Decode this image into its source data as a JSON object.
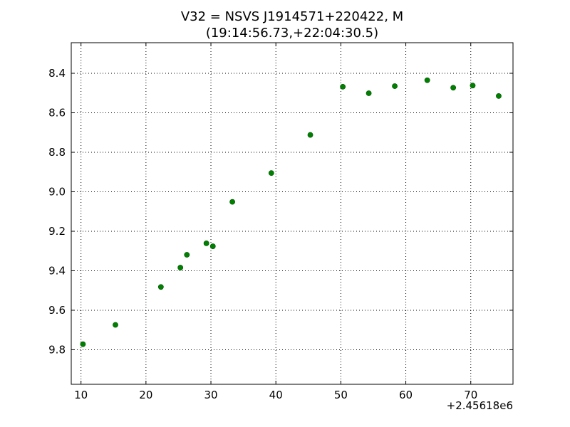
{
  "chart_data": {
    "type": "scatter",
    "title": "V32 = NSVS J1914571+220422, M",
    "subtitle": "(19:14:56.73,+22:04:30.5)",
    "xlabel": "",
    "ylabel": "",
    "x_offset_label": "+2.45618e6",
    "xlim": [
      8.5,
      76.5
    ],
    "ylim": [
      9.975,
      8.245
    ],
    "y_inverted": true,
    "x_ticks": [
      10,
      20,
      30,
      40,
      50,
      60,
      70
    ],
    "y_ticks": [
      8.4,
      8.6,
      8.8,
      9.0,
      9.2,
      9.4,
      9.6,
      9.8
    ],
    "y_tick_labels": [
      "8.4",
      "8.6",
      "8.8",
      "9.0",
      "9.2",
      "9.4",
      "9.6",
      "9.8"
    ],
    "grid": true,
    "marker_color": "#008000",
    "series": [
      {
        "x": [
          10.3,
          15.3,
          22.3,
          25.3,
          26.3,
          29.3,
          30.3,
          33.3,
          39.3,
          45.3,
          50.3,
          54.3,
          58.3,
          63.3,
          67.3,
          70.3,
          74.3
        ],
        "y": [
          9.772,
          9.674,
          9.482,
          9.384,
          9.319,
          9.261,
          9.276,
          9.051,
          8.905,
          8.712,
          8.468,
          8.501,
          8.465,
          8.435,
          8.473,
          8.462,
          8.515
        ]
      }
    ]
  }
}
